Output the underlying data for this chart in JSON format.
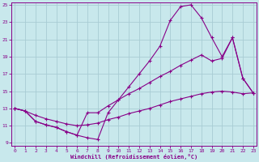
{
  "bg_color": "#c8e8ec",
  "grid_color": "#a8ccd4",
  "line_color": "#880088",
  "xlabel": "Windchill (Refroidissement éolien,°C)",
  "xlim": [
    0,
    23
  ],
  "ylim": [
    9,
    25
  ],
  "xticks": [
    0,
    1,
    2,
    3,
    4,
    5,
    6,
    7,
    8,
    9,
    10,
    11,
    12,
    13,
    14,
    15,
    16,
    17,
    18,
    19,
    20,
    21,
    22,
    23
  ],
  "yticks": [
    9,
    11,
    13,
    15,
    17,
    19,
    21,
    23,
    25
  ],
  "series": [
    {
      "x": [
        0,
        1,
        2,
        3,
        4,
        5,
        6,
        7,
        8,
        9,
        10,
        11,
        12,
        13,
        14,
        15,
        16,
        17,
        18,
        19,
        20,
        21,
        22,
        23
      ],
      "y": [
        13.0,
        12.7,
        12.2,
        11.8,
        11.5,
        11.2,
        11.0,
        11.1,
        11.3,
        11.7,
        12.0,
        12.4,
        12.7,
        13.0,
        13.4,
        13.8,
        14.1,
        14.4,
        14.7,
        14.9,
        15.0,
        14.9,
        14.7,
        14.8
      ]
    },
    {
      "x": [
        0,
        1,
        2,
        3,
        4,
        5,
        6,
        7,
        8,
        9,
        10,
        11,
        12,
        13,
        14,
        15,
        16,
        17,
        18,
        19,
        20,
        21,
        22,
        23
      ],
      "y": [
        13.0,
        12.7,
        11.5,
        11.1,
        10.8,
        10.3,
        9.9,
        9.6,
        9.4,
        12.5,
        14.0,
        15.5,
        17.0,
        18.5,
        20.2,
        23.2,
        24.8,
        25.0,
        23.5,
        21.2,
        19.0,
        21.2,
        16.5,
        14.8
      ]
    },
    {
      "x": [
        0,
        1,
        2,
        3,
        4,
        5,
        6,
        7,
        8,
        9,
        10,
        11,
        12,
        13,
        14,
        15,
        16,
        17,
        18,
        19,
        20,
        21,
        22,
        23
      ],
      "y": [
        13.0,
        12.7,
        11.5,
        11.1,
        10.8,
        10.3,
        9.9,
        12.5,
        12.5,
        13.3,
        14.0,
        14.7,
        15.3,
        16.0,
        16.7,
        17.3,
        18.0,
        18.6,
        19.2,
        18.5,
        18.8,
        21.2,
        16.5,
        14.8
      ]
    }
  ]
}
